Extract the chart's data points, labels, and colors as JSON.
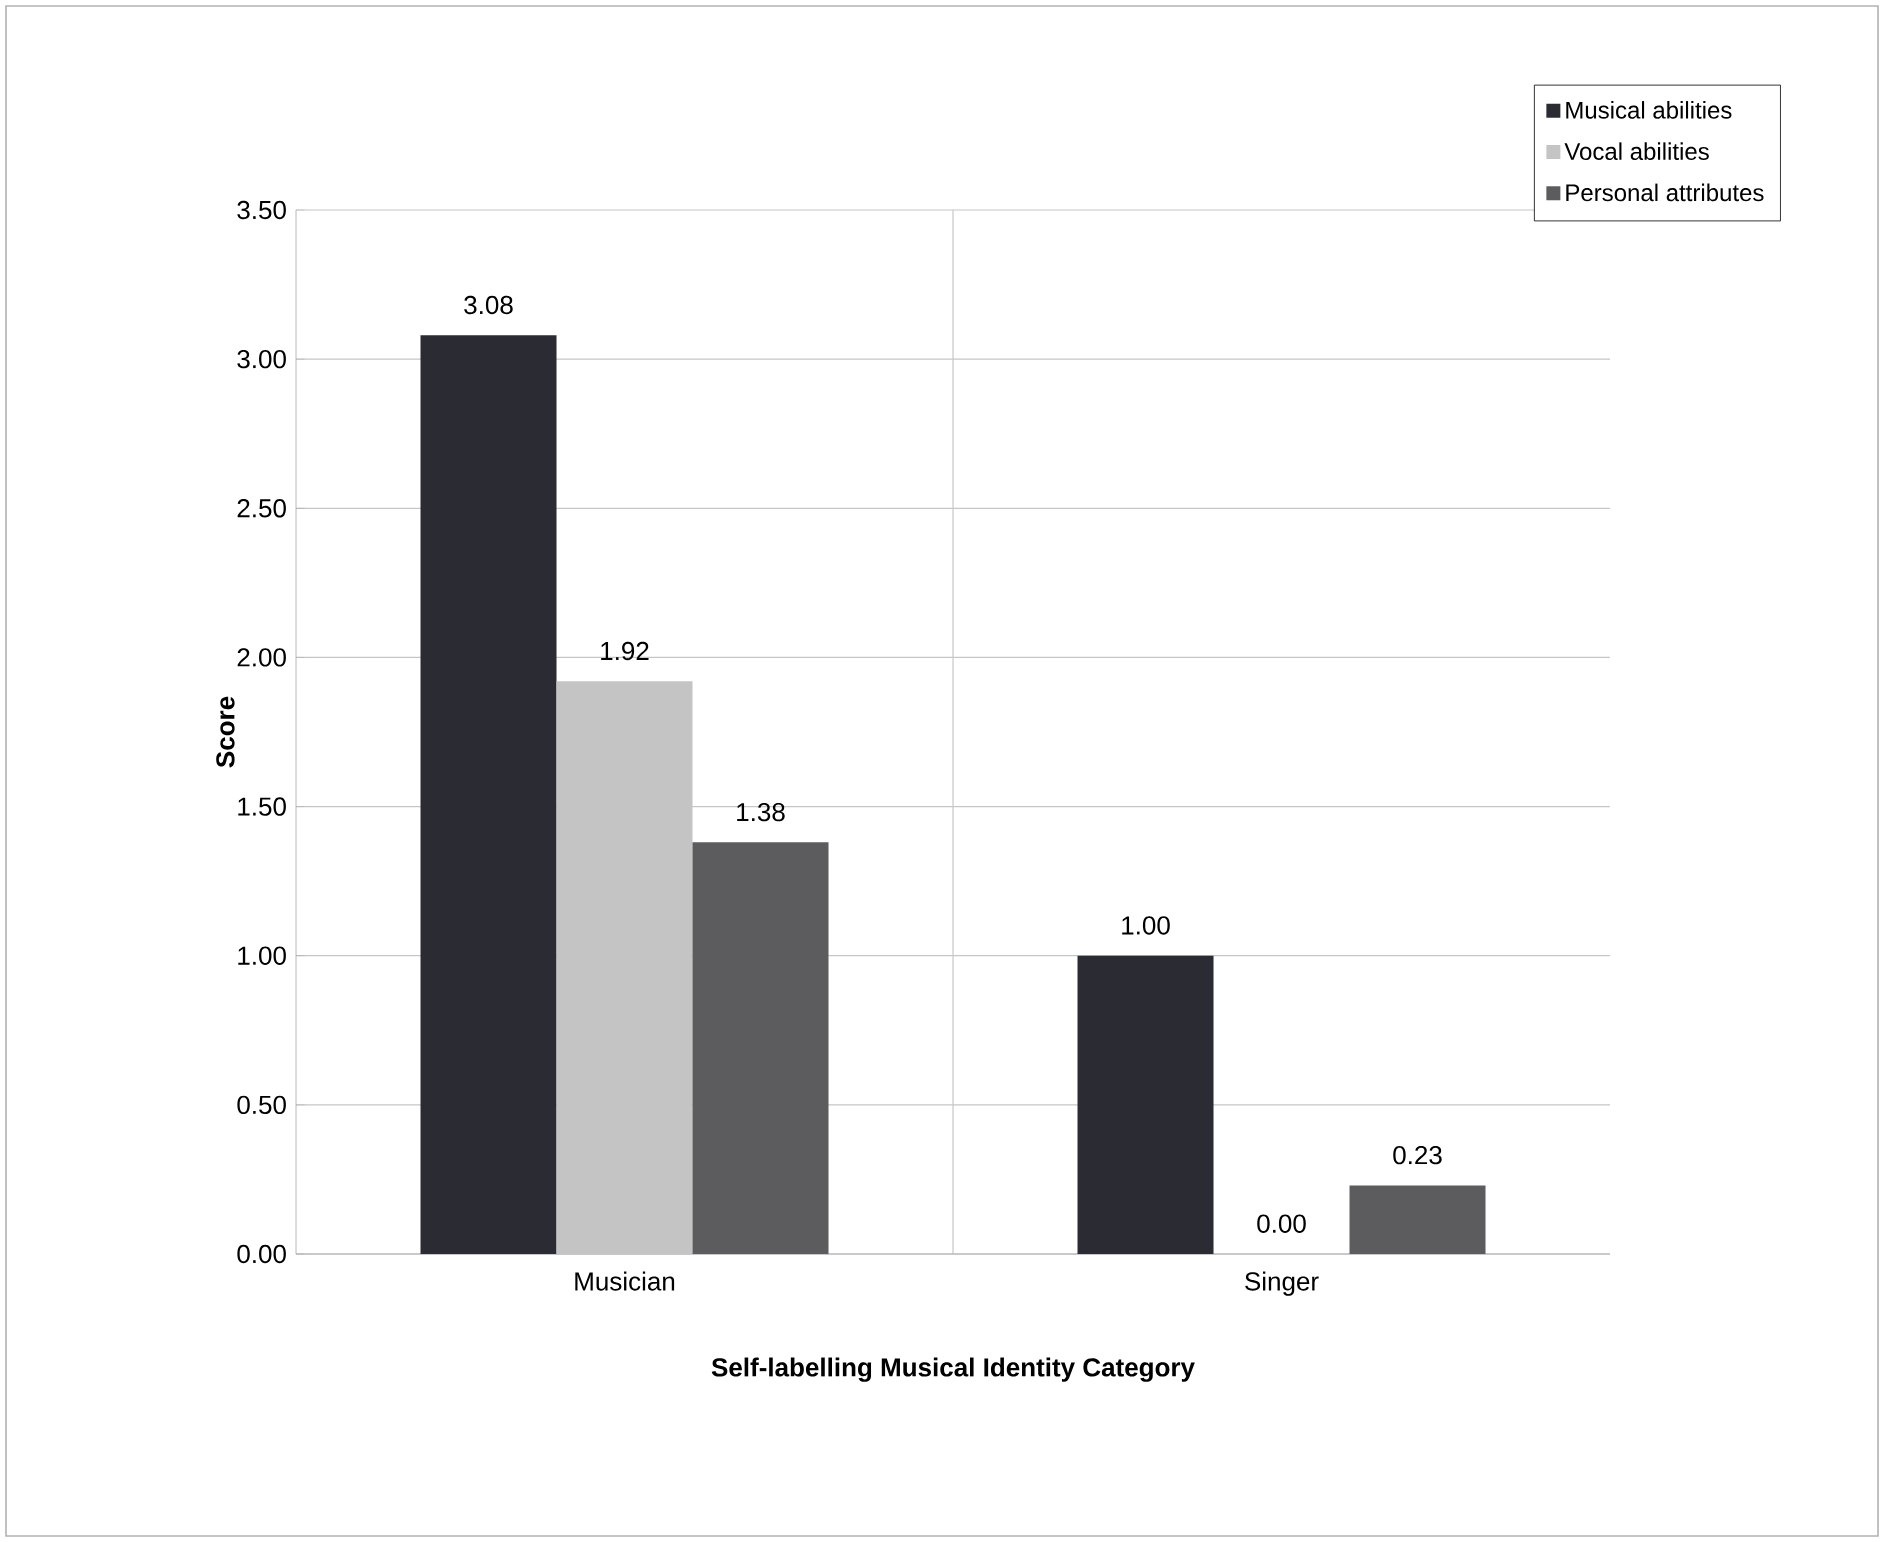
{
  "chart_data": {
    "type": "bar",
    "xlabel": "Self-labelling Musical Identity Category",
    "ylabel": "Score",
    "categories": [
      "Musician",
      "Singer"
    ],
    "series": [
      {
        "name": "Musical abilities",
        "color": "#2b2b33",
        "values": [
          3.08,
          1.0
        ],
        "value_labels": [
          "3.08",
          "1.00"
        ]
      },
      {
        "name": "Vocal abilities",
        "color": "#c4c4c4",
        "values": [
          1.92,
          0.0
        ],
        "value_labels": [
          "1.92",
          "0.00"
        ]
      },
      {
        "name": "Personal attributes",
        "color": "#5c5c5e",
        "values": [
          1.38,
          0.23
        ],
        "value_labels": [
          "1.38",
          "0.23"
        ]
      }
    ],
    "ylim": [
      0,
      3.5
    ],
    "yticks": [
      {
        "value": 0,
        "label": "0.00"
      },
      {
        "value": 0.5,
        "label": "0.50"
      },
      {
        "value": 1,
        "label": "1.00"
      },
      {
        "value": 1.5,
        "label": "1.50"
      },
      {
        "value": 2,
        "label": "2.00"
      },
      {
        "value": 2.5,
        "label": "2.50"
      },
      {
        "value": 3,
        "label": "3.00"
      },
      {
        "value": 3.5,
        "label": "3.50"
      }
    ],
    "grid": true,
    "legend": "top right"
  }
}
